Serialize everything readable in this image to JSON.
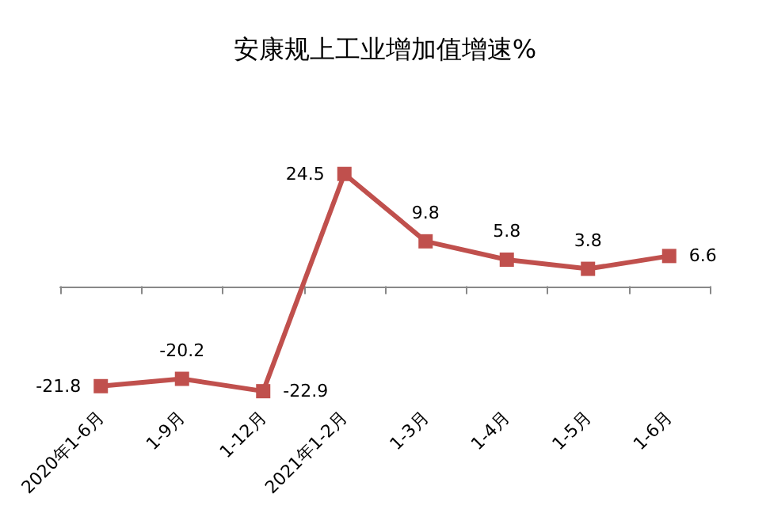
{
  "chart_data": {
    "type": "line",
    "title": "安康规上工业增加值增速%",
    "categories": [
      "2020年1-6月",
      "1-9月",
      "1-12月",
      "2021年1-2月",
      "1-3月",
      "1-4月",
      "1-5月",
      "1-6月"
    ],
    "series": [
      {
        "color": "#c0504d",
        "values": [
          -21.8,
          -20.2,
          -22.9,
          24.5,
          9.8,
          5.8,
          3.8,
          6.6
        ]
      }
    ],
    "data_labels": true,
    "marker": "square",
    "grid": false,
    "tick_labels": "x"
  }
}
